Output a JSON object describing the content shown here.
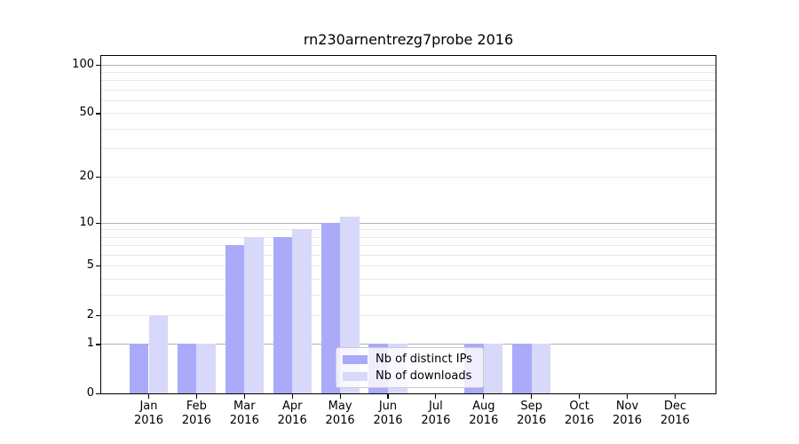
{
  "chart_data": {
    "type": "bar",
    "title": "rn230arnentrezg7probe 2016",
    "x_categories": [
      {
        "month": "Jan",
        "year": "2016"
      },
      {
        "month": "Feb",
        "year": "2016"
      },
      {
        "month": "Mar",
        "year": "2016"
      },
      {
        "month": "Apr",
        "year": "2016"
      },
      {
        "month": "May",
        "year": "2016"
      },
      {
        "month": "Jun",
        "year": "2016"
      },
      {
        "month": "Jul",
        "year": "2016"
      },
      {
        "month": "Aug",
        "year": "2016"
      },
      {
        "month": "Sep",
        "year": "2016"
      },
      {
        "month": "Oct",
        "year": "2016"
      },
      {
        "month": "Nov",
        "year": "2016"
      },
      {
        "month": "Dec",
        "year": "2016"
      }
    ],
    "series": [
      {
        "name": "Nb of distinct IPs",
        "color": "#aaaafb",
        "values": [
          1,
          1,
          7,
          8,
          10,
          1,
          0,
          1,
          1,
          0,
          0,
          0
        ]
      },
      {
        "name": "Nb of downloads",
        "color": "#d8d8fa",
        "values": [
          2,
          1,
          8,
          9,
          11,
          1,
          0,
          1,
          1,
          0,
          0,
          0
        ]
      }
    ],
    "yscale": "log1p",
    "ylim": [
      0,
      112.7
    ],
    "y_ticks": [
      0,
      1,
      2,
      5,
      10,
      20,
      50,
      100
    ],
    "y_major_gridlines": [
      1,
      10,
      100
    ],
    "y_minor_gridlines": [
      2,
      3,
      4,
      5,
      6,
      7,
      8,
      9,
      20,
      30,
      40,
      50,
      60,
      70,
      80,
      90
    ],
    "grid": true,
    "legend_position": "lower right inside",
    "gridline_major_color": "#b1b1b1",
    "gridline_minor_color": "#e9e9e9"
  }
}
